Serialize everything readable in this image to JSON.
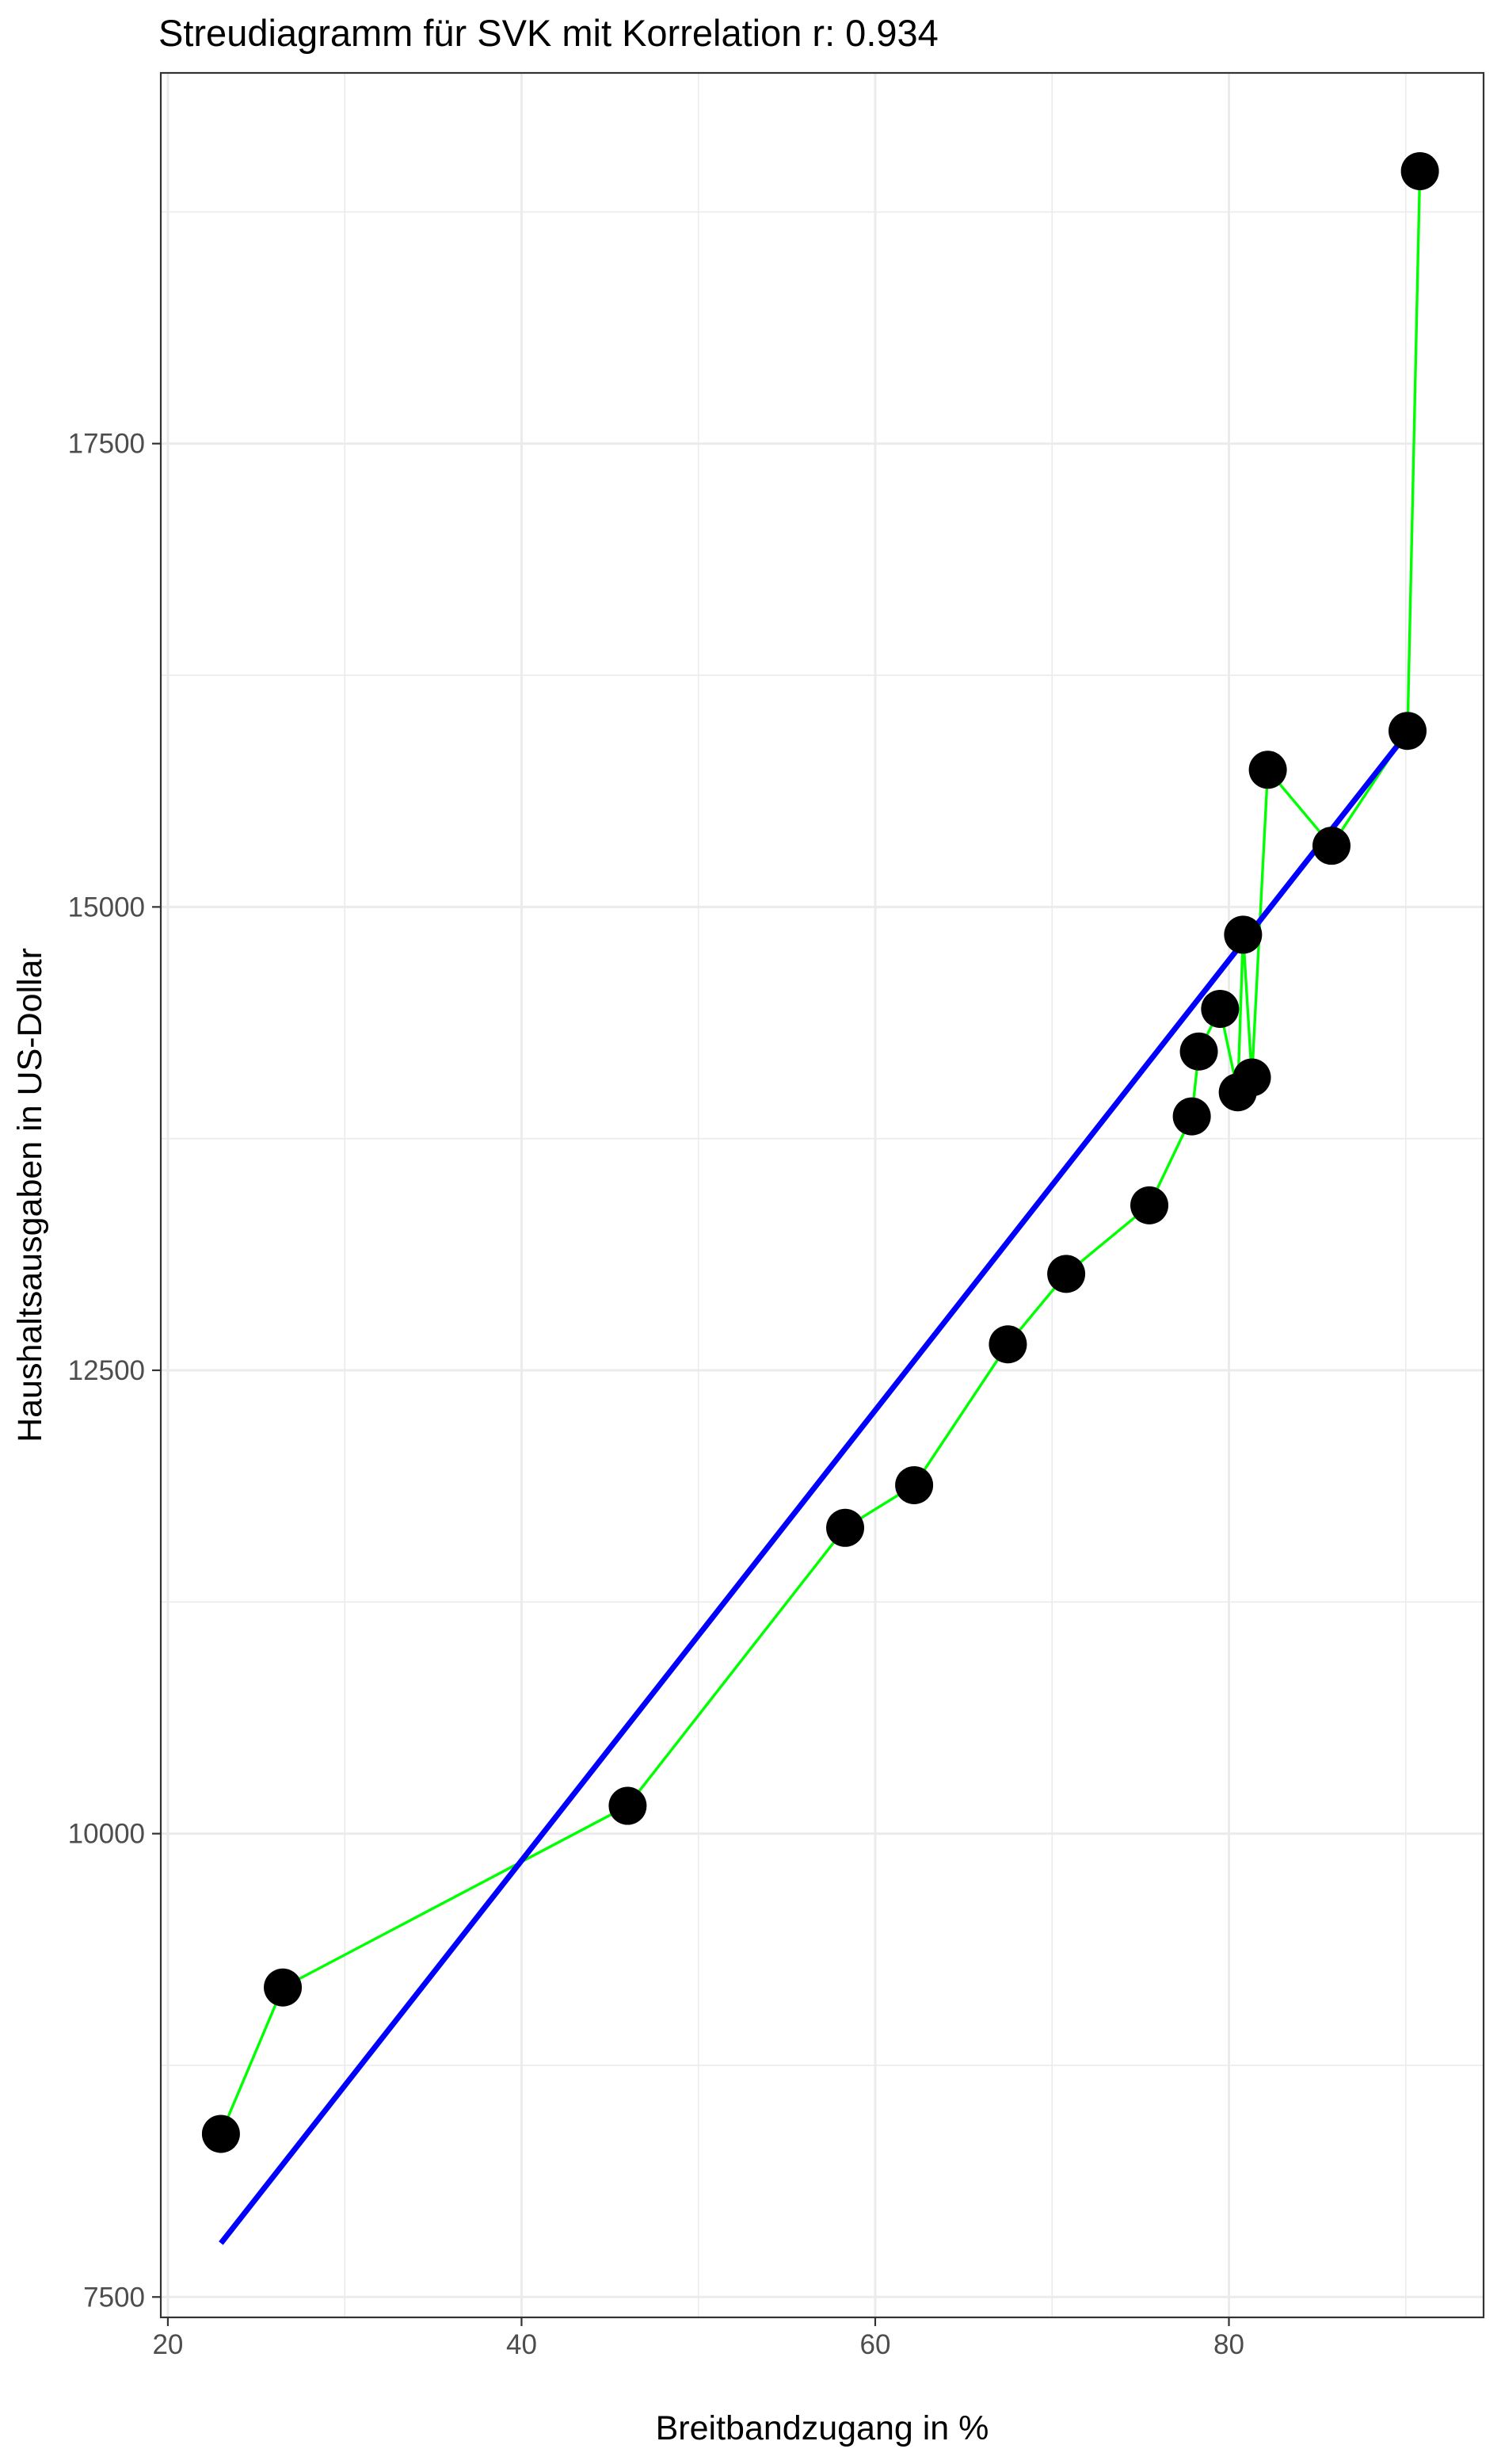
{
  "chart_data": {
    "type": "scatter",
    "title": "Streudiagramm für  SVK  mit Korrelation r:  0.934",
    "xlabel": "Breitbandzugang in %",
    "ylabel": "Haushaltsausgaben in US-Dollar",
    "xlim": [
      19.6,
      94.4
    ],
    "ylim": [
      7390,
      19500
    ],
    "x_ticks": [
      20,
      40,
      60,
      80
    ],
    "x_tick_labels": [
      "20",
      "40",
      "60",
      "80"
    ],
    "y_ticks": [
      7500,
      10000,
      12500,
      15000,
      17500
    ],
    "y_tick_labels": [
      "7500",
      "10000",
      "12500",
      "15000",
      "17500"
    ],
    "grid": true,
    "points": [
      {
        "x": 23.0,
        "y": 8380
      },
      {
        "x": 26.5,
        "y": 9170
      },
      {
        "x": 46.0,
        "y": 10150
      },
      {
        "x": 58.3,
        "y": 11650
      },
      {
        "x": 62.2,
        "y": 11880
      },
      {
        "x": 67.5,
        "y": 12640
      },
      {
        "x": 70.8,
        "y": 13020
      },
      {
        "x": 75.5,
        "y": 13390
      },
      {
        "x": 77.9,
        "y": 13870
      },
      {
        "x": 78.3,
        "y": 14220
      },
      {
        "x": 79.5,
        "y": 14450
      },
      {
        "x": 80.5,
        "y": 14000
      },
      {
        "x": 80.8,
        "y": 14850
      },
      {
        "x": 81.3,
        "y": 14080
      },
      {
        "x": 82.2,
        "y": 15740
      },
      {
        "x": 85.8,
        "y": 15330
      },
      {
        "x": 90.1,
        "y": 15950
      },
      {
        "x": 90.8,
        "y": 18970
      }
    ],
    "regression_line": {
      "x": [
        23.0,
        90.1
      ],
      "y": [
        7790,
        15940
      ]
    },
    "colors": {
      "points": "#000000",
      "connecting_line": "#00ff00",
      "regression_line": "#0000ff",
      "grid": "#ebebeb",
      "panel_border": "#333333",
      "text": "#000000",
      "tick_text": "#4d4d4d"
    }
  }
}
